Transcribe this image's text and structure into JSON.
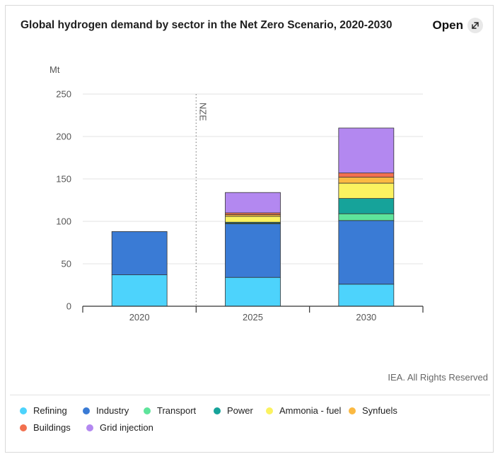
{
  "header": {
    "title": "Global hydrogen demand by sector in the Net Zero Scenario, 2020-2030",
    "open_label": "Open",
    "open_icon": "external-link-icon"
  },
  "source": "IEA. All Rights Reserved",
  "chart_data": {
    "type": "bar",
    "stacked": true,
    "title": "Global hydrogen demand by sector in the Net Zero Scenario, 2020-2030",
    "ylabel": "Mt",
    "xlabel": "",
    "ylim": [
      0,
      250
    ],
    "yticks": [
      0,
      50,
      100,
      150,
      200,
      250
    ],
    "categories": [
      "2020",
      "2025",
      "2030"
    ],
    "annotation": {
      "label": "NZE",
      "between": [
        "2020",
        "2025"
      ]
    },
    "series": [
      {
        "name": "Refining",
        "color": "#4dd3fc",
        "values": [
          37,
          34,
          26
        ]
      },
      {
        "name": "Industry",
        "color": "#3a7bd5",
        "values": [
          51,
          63,
          75
        ]
      },
      {
        "name": "Transport",
        "color": "#5ee49b",
        "values": [
          0,
          1,
          8
        ]
      },
      {
        "name": "Power",
        "color": "#16a39a",
        "values": [
          0,
          1,
          18
        ]
      },
      {
        "name": "Ammonia - fuel",
        "color": "#fbf260",
        "values": [
          0,
          7,
          18
        ]
      },
      {
        "name": "Synfuels",
        "color": "#fbb942",
        "values": [
          0,
          2,
          7
        ]
      },
      {
        "name": "Buildings",
        "color": "#f2704f",
        "values": [
          0,
          2,
          5
        ]
      },
      {
        "name": "Grid injection",
        "color": "#b388f0",
        "values": [
          0,
          24,
          53
        ]
      }
    ]
  }
}
